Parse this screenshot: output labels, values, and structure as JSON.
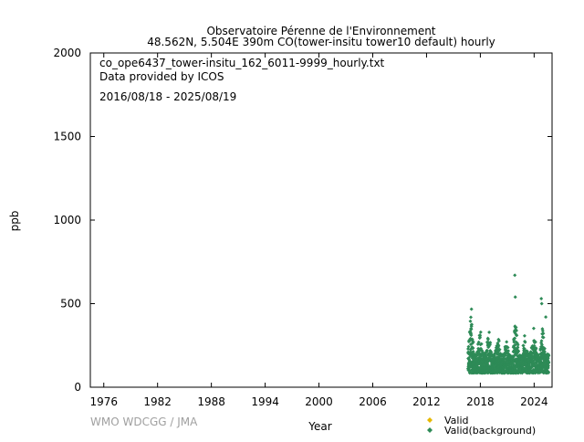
{
  "chart_data": {
    "type": "scatter",
    "title_line1": "Observatoire Pérenne de l'Environnement",
    "title_line2": "48.562N, 5.504E 390m     CO(tower-insitu tower10 default) hourly",
    "annotations": [
      "co_ope6437_tower-insitu_162_6011-9999_hourly.txt",
      "Data provided by ICOS",
      "2016/08/18 - 2025/08/19"
    ],
    "xlabel": "Year",
    "ylabel": "ppb",
    "xlim": [
      1974.5,
      2026.0
    ],
    "ylim": [
      0,
      2000
    ],
    "xticks": [
      1976,
      1982,
      1988,
      1994,
      2000,
      2006,
      2012,
      2018,
      2024
    ],
    "yticks": [
      0,
      500,
      1000,
      1500,
      2000
    ],
    "legend_position": "bottom-right",
    "series": [
      {
        "name": "Valid",
        "color": "#e6b800",
        "values": []
      },
      {
        "name": "Valid(background)",
        "color": "#2e8b57",
        "band": {
          "x_start": 2016.63,
          "x_end": 2025.63,
          "typical_min": 85,
          "typical_max": 200,
          "winter_peaks": [
            {
              "x": 2016.95,
              "y": 565
            },
            {
              "x": 2017.95,
              "y": 400
            },
            {
              "x": 2018.95,
              "y": 420
            },
            {
              "x": 2019.95,
              "y": 360
            },
            {
              "x": 2020.95,
              "y": 310
            },
            {
              "x": 2021.95,
              "y": 470
            },
            {
              "x": 2022.95,
              "y": 340
            },
            {
              "x": 2023.95,
              "y": 375
            },
            {
              "x": 2024.95,
              "y": 380
            }
          ]
        },
        "outliers": [
          {
            "x": 2021.85,
            "y": 670
          },
          {
            "x": 2021.9,
            "y": 540
          },
          {
            "x": 2024.8,
            "y": 530
          },
          {
            "x": 2024.85,
            "y": 500
          },
          {
            "x": 2025.3,
            "y": 420
          }
        ]
      }
    ]
  },
  "footer": {
    "credit": "WMO WDCGG / JMA"
  }
}
